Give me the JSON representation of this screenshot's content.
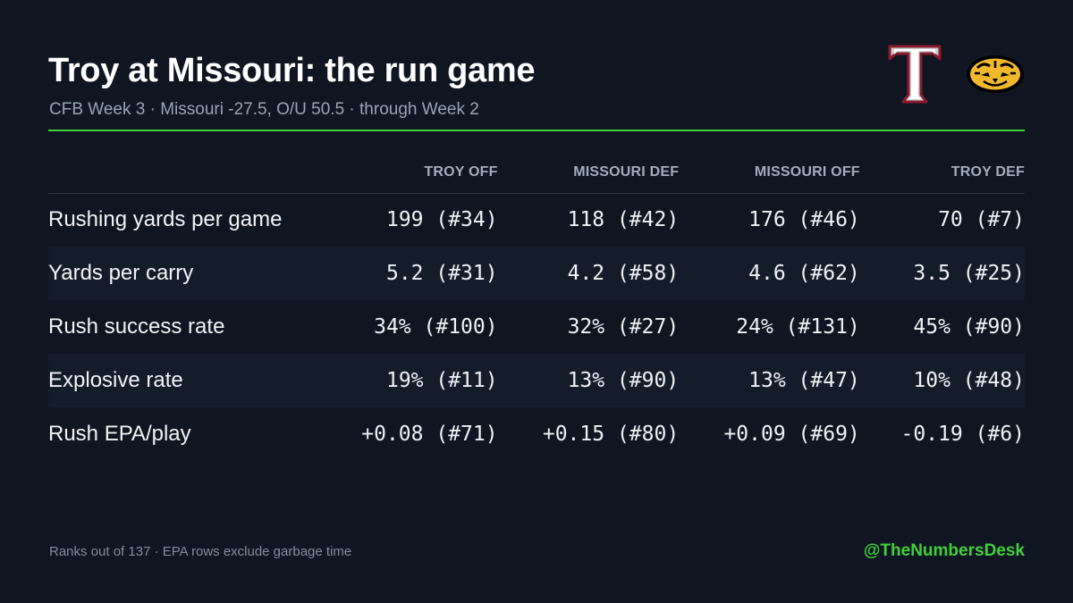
{
  "header": {
    "title": "Troy at Missouri: the run game",
    "subtitle": "CFB Week 3 · Missouri -27.5, O/U 50.5 · through Week 2"
  },
  "logos": [
    "troy-trojans-logo",
    "missouri-tigers-logo"
  ],
  "table": {
    "columns": [
      "TROY OFF",
      "MISSOURI DEF",
      "MISSOURI OFF",
      "TROY DEF"
    ],
    "rows": [
      {
        "label": "Rushing yards per game",
        "values": [
          "199 (#34)",
          "118 (#42)",
          "176 (#46)",
          "70 (#7)"
        ]
      },
      {
        "label": "Yards per carry",
        "values": [
          "5.2 (#31)",
          "4.2 (#58)",
          "4.6 (#62)",
          "3.5 (#25)"
        ]
      },
      {
        "label": "Rush success rate",
        "values": [
          "34% (#100)",
          "32% (#27)",
          "24% (#131)",
          "45% (#90)"
        ]
      },
      {
        "label": "Explosive rate",
        "values": [
          "19% (#11)",
          "13% (#90)",
          "13% (#47)",
          "10% (#48)"
        ]
      },
      {
        "label": "Rush EPA/play",
        "values": [
          "+0.08 (#71)",
          "+0.15 (#80)",
          "+0.09 (#69)",
          "-0.19 (#6)"
        ]
      }
    ]
  },
  "footer": {
    "note": "Ranks out of 137 · EPA rows exclude garbage time",
    "handle": "@TheNumbersDesk"
  },
  "colors": {
    "background": "#0f1521",
    "accent": "#3fd13a",
    "troy_red": "#8b1a2b",
    "mizzou_gold": "#f1b82d"
  }
}
